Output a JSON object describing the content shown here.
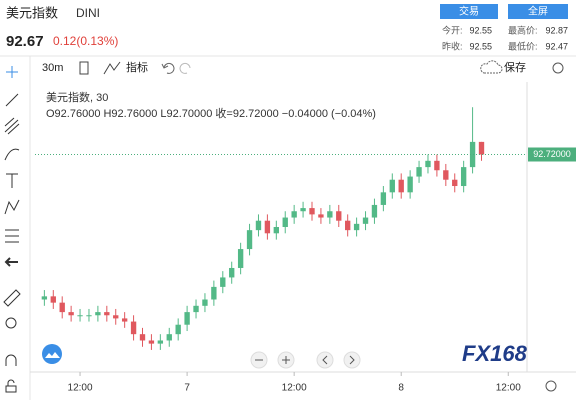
{
  "header": {
    "title": "美元指数",
    "symbol": "DINI",
    "price": "92.67",
    "change": "0.12(0.13%)",
    "trade_button": "交易",
    "fullscreen_button": "全屏",
    "stats": [
      {
        "label": "今开:",
        "value": "92.55"
      },
      {
        "label": "最高价:",
        "value": "92.87"
      },
      {
        "label": "昨收:",
        "value": "92.55"
      },
      {
        "label": "最低价:",
        "value": "92.47"
      }
    ]
  },
  "toolbar": {
    "interval": "30m",
    "indicators": "指标",
    "save": "保存"
  },
  "logo": "FX168",
  "chart_data": {
    "type": "candlestick",
    "legend_title": "美元指数, 30",
    "legend_ohlc": "O92.76000 H92.76000 L92.70000 收=92.72000 −0.04000 (−0.04%)",
    "up_color": "#53b987",
    "down_color": "#e0585e",
    "x": [
      8,
      9,
      10,
      11,
      12,
      13,
      14,
      15,
      16,
      17,
      18,
      19,
      20,
      21,
      22,
      23,
      24,
      25,
      26,
      27,
      28,
      29,
      30,
      31,
      32,
      33,
      34,
      35,
      36,
      37,
      38,
      39,
      40,
      41,
      42,
      43,
      44,
      45,
      46,
      47,
      48,
      49,
      50,
      51,
      52,
      53,
      54,
      55,
      56,
      57
    ],
    "open": [
      92.26,
      92.27,
      92.25,
      92.22,
      92.21,
      92.21,
      92.21,
      92.22,
      92.21,
      92.2,
      92.19,
      92.15,
      92.13,
      92.12,
      92.13,
      92.15,
      92.18,
      92.22,
      92.24,
      92.26,
      92.3,
      92.33,
      92.36,
      92.42,
      92.48,
      92.51,
      92.47,
      92.49,
      92.52,
      92.54,
      92.55,
      92.53,
      92.52,
      92.54,
      92.51,
      92.48,
      92.5,
      92.52,
      92.56,
      92.6,
      92.64,
      92.6,
      92.65,
      92.68,
      92.7,
      92.67,
      92.64,
      92.62,
      92.68,
      92.76
    ],
    "high": [
      92.29,
      92.29,
      92.27,
      92.24,
      92.23,
      92.23,
      92.24,
      92.24,
      92.23,
      92.22,
      92.21,
      92.17,
      92.15,
      92.15,
      92.17,
      92.2,
      92.24,
      92.26,
      92.28,
      92.32,
      92.35,
      92.38,
      92.44,
      92.5,
      92.53,
      92.53,
      92.51,
      92.54,
      92.56,
      92.57,
      92.57,
      92.55,
      92.56,
      92.56,
      92.53,
      92.52,
      92.54,
      92.58,
      92.62,
      92.66,
      92.66,
      92.67,
      92.7,
      92.72,
      92.72,
      92.69,
      92.66,
      92.7,
      92.87,
      92.76
    ],
    "low": [
      92.24,
      92.23,
      92.2,
      92.19,
      92.19,
      92.19,
      92.19,
      92.19,
      92.18,
      92.17,
      92.13,
      92.11,
      92.1,
      92.1,
      92.11,
      92.13,
      92.16,
      92.2,
      92.22,
      92.24,
      92.28,
      92.31,
      92.34,
      92.4,
      92.46,
      92.45,
      92.45,
      92.47,
      92.5,
      92.52,
      92.51,
      92.5,
      92.5,
      92.49,
      92.46,
      92.46,
      92.48,
      92.5,
      92.54,
      92.58,
      92.58,
      92.58,
      92.63,
      92.66,
      92.65,
      92.62,
      92.6,
      92.6,
      92.66,
      92.7
    ],
    "close": [
      92.27,
      92.25,
      92.22,
      92.21,
      92.21,
      92.21,
      92.22,
      92.21,
      92.2,
      92.19,
      92.15,
      92.13,
      92.12,
      92.13,
      92.15,
      92.18,
      92.22,
      92.24,
      92.26,
      92.3,
      92.33,
      92.36,
      92.42,
      92.48,
      92.51,
      92.47,
      92.49,
      92.52,
      92.54,
      92.55,
      92.53,
      92.52,
      92.54,
      92.51,
      92.48,
      92.5,
      92.52,
      92.56,
      92.6,
      92.64,
      92.6,
      92.65,
      92.68,
      92.7,
      92.67,
      92.64,
      92.62,
      92.68,
      92.76,
      92.72
    ],
    "xlim": [
      6.95,
      62.1
    ],
    "xticks": [
      {
        "value": 12,
        "label": "12:00"
      },
      {
        "value": 24,
        "label": "7"
      },
      {
        "value": 36,
        "label": "12:00"
      },
      {
        "value": 48,
        "label": "8"
      },
      {
        "value": 60,
        "label": "12:00"
      }
    ],
    "ylim": [
      92.03,
      92.95
    ],
    "last_price": {
      "value": 92.72,
      "label": "92.72000"
    },
    "last_price_color": "#4caf7d"
  }
}
